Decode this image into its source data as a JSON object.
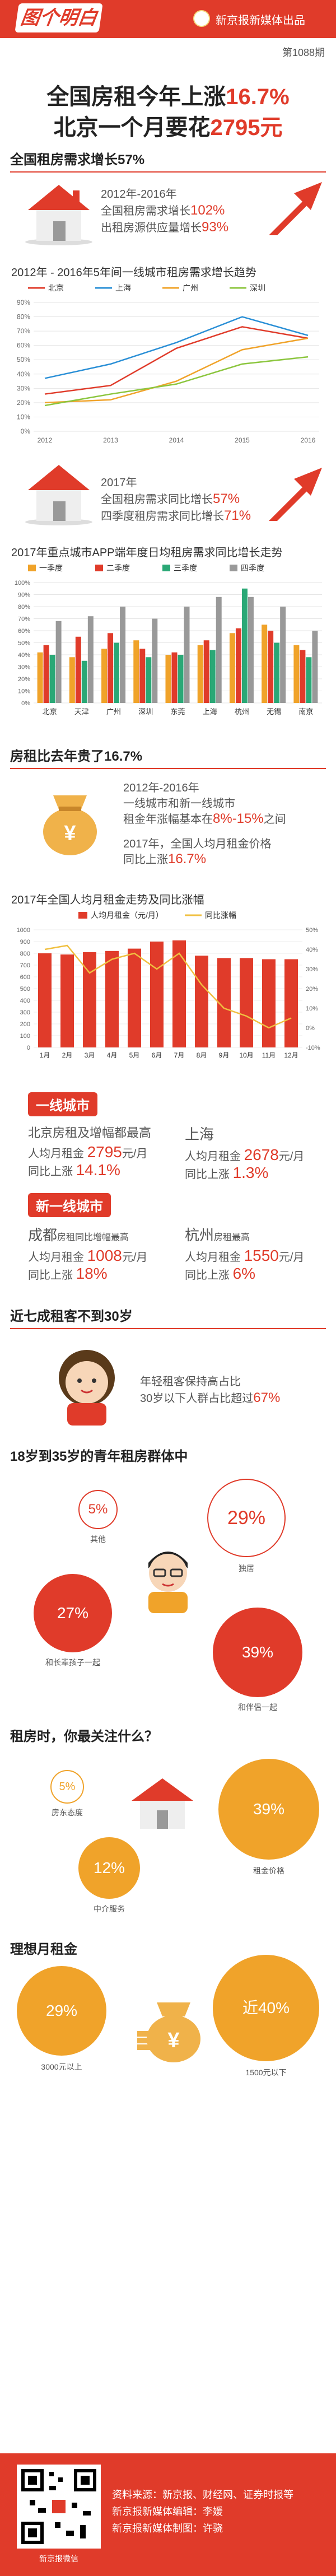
{
  "header": {
    "logo": "图个明白",
    "publisher": "新京报新媒体出品",
    "issue": "第1088期"
  },
  "hero": {
    "title1_pre": "全国房租今年上涨",
    "title1_hl": "16.7%",
    "title2_pre": "北京一个月要花",
    "title2_hl": "2795元"
  },
  "sec1": {
    "title": "全国租房需求增长57%",
    "years": "2012年-2016年",
    "line1_pre": "全国租房需求增长",
    "line1_hl": "102%",
    "line2_pre": "出租房源供应量增长",
    "line2_hl": "93%"
  },
  "line_chart": {
    "title": "2012年 - 2016年5年间一线城市租房需求增长趋势"
  },
  "sec2": {
    "year": "2017年",
    "line1_pre": "全国租房需求同比增长",
    "line1_hl": "57%",
    "line2_pre": "四季度租房需求同比增长",
    "line2_hl": "71%"
  },
  "bar_chart": {
    "title": "2017年重点城市APP端年度日均租房需求同比增长走势"
  },
  "sec3": {
    "title": "房租比去年贵了16.7%",
    "years": "2012年-2016年",
    "l1": "一线城市和新一线城市",
    "l2_pre": "租金年涨幅基本在",
    "l2_hl": "8%-15%",
    "l2_post": "之间",
    "l3": "2017年，全国人均月租金价格",
    "l4_pre": "同比上涨",
    "l4_hl": "16.7%"
  },
  "combo_chart": {
    "title": "2017年全国人均月租金走势及同比涨幅"
  },
  "tier1": {
    "tag": "一线城市",
    "bj_head": "北京房租及增幅都最高",
    "bj_l1": "人均月租金",
    "bj_v1": "2795",
    "bj_u1": "元/月",
    "bj_l2": "同比上涨",
    "bj_v2": "14.1%",
    "sh_head": "上海",
    "sh_l1": "人均月租金",
    "sh_v1": "2678",
    "sh_u1": "元/月",
    "sh_l2": "同比上涨",
    "sh_v2": "1.3%"
  },
  "tier2": {
    "tag": "新一线城市",
    "cd_head": "成都",
    "cd_sub": "房租同比增幅最高",
    "cd_l1": "人均月租金",
    "cd_v1": "1008",
    "cd_u1": "元/月",
    "cd_l2": "同比上涨",
    "cd_v2": "18%",
    "hz_head": "杭州",
    "hz_sub": "房租最高",
    "hz_l1": "人均月租金",
    "hz_v1": "1550",
    "hz_u1": "元/月",
    "hz_l2": "同比上涨",
    "hz_v2": "6%"
  },
  "sec4": {
    "title": "近七成租客不到30岁",
    "l1": "年轻租客保持高占比",
    "l2_pre": "30岁以下人群占比超过",
    "l2_hl": "67%"
  },
  "sec5": {
    "title": "18岁到35岁的青年租房群体中",
    "b1v": "5%",
    "b1l": "其他",
    "b2v": "29%",
    "b2l": "独居",
    "b3v": "27%",
    "b3l": "和长辈孩子一起",
    "b4v": "39%",
    "b4l": "和伴侣一起"
  },
  "sec6": {
    "title": "租房时，你最关注什么？",
    "b1v": "5%",
    "b1l": "房东态度",
    "b2v": "39%",
    "b2l": "租金价格",
    "b3v": "12%",
    "b3l": "中介服务"
  },
  "sec7": {
    "title": "理想月租金",
    "b1v": "29%",
    "b1l": "3000元以上",
    "b2v": "近40%",
    "b2l": "1500元以下"
  },
  "footer": {
    "qr_caption": "新京报微信",
    "source": "资料来源：新京报、财经网、证券时报等",
    "editor": "新京报新媒体编辑：李媛",
    "designer": "新京报新媒体制图：许骁"
  },
  "chart_data": [
    {
      "type": "line",
      "title": "2012年 - 2016年5年间一线城市租房需求增长趋势",
      "x": [
        "2012",
        "2013",
        "2014",
        "2015",
        "2016"
      ],
      "ylim": [
        0,
        90
      ],
      "yticks": [
        "0%",
        "10%",
        "20%",
        "30%",
        "40%",
        "50%",
        "60%",
        "70%",
        "80%",
        "90%"
      ],
      "series": [
        {
          "name": "北京",
          "color": "#e03b2a",
          "values": [
            26,
            32,
            58,
            73,
            65
          ]
        },
        {
          "name": "上海",
          "color": "#2a8fd6",
          "values": [
            37,
            47,
            62,
            80,
            67
          ]
        },
        {
          "name": "广州",
          "color": "#f0a32a",
          "values": [
            20,
            22,
            35,
            57,
            65
          ]
        },
        {
          "name": "深圳",
          "color": "#8cc63f",
          "values": [
            18,
            26,
            33,
            47,
            52
          ]
        }
      ]
    },
    {
      "type": "bar",
      "title": "2017年重点城市APP端年度日均租房需求同比增长走势",
      "categories": [
        "北京",
        "天津",
        "广州",
        "深圳",
        "东莞",
        "上海",
        "杭州",
        "无锡",
        "南京"
      ],
      "ylim": [
        0,
        100
      ],
      "yticks": [
        "0%",
        "10%",
        "20%",
        "30%",
        "40%",
        "50%",
        "60%",
        "70%",
        "80%",
        "90%",
        "100%"
      ],
      "series": [
        {
          "name": "一季度",
          "color": "#f0a32a",
          "values": [
            42,
            38,
            45,
            52,
            40,
            48,
            58,
            65,
            48
          ]
        },
        {
          "name": "二季度",
          "color": "#e03b2a",
          "values": [
            48,
            55,
            58,
            45,
            42,
            52,
            62,
            60,
            44
          ]
        },
        {
          "name": "三季度",
          "color": "#2aa876",
          "values": [
            40,
            35,
            50,
            38,
            40,
            44,
            95,
            50,
            38
          ]
        },
        {
          "name": "四季度",
          "color": "#999999",
          "values": [
            68,
            72,
            80,
            70,
            80,
            88,
            88,
            80,
            60
          ]
        }
      ]
    },
    {
      "type": "bar",
      "title": "2017年全国人均月租金走势及同比涨幅",
      "categories": [
        "1月",
        "2月",
        "3月",
        "4月",
        "5月",
        "6月",
        "7月",
        "8月",
        "9月",
        "10月",
        "11月",
        "12月"
      ],
      "y_left_lim": [
        0,
        1000
      ],
      "y_left_ticks": [
        "0",
        "100",
        "200",
        "300",
        "400",
        "500",
        "600",
        "700",
        "800",
        "900",
        "1000"
      ],
      "y_right_lim": [
        -10,
        50
      ],
      "y_right_ticks": [
        "-10%",
        "0%",
        "10%",
        "20%",
        "30%",
        "40%",
        "50%"
      ],
      "series": [
        {
          "name": "人均月租金（元/月）",
          "color": "#e03b2a",
          "kind": "bar",
          "values": [
            800,
            790,
            810,
            820,
            840,
            900,
            910,
            780,
            760,
            760,
            750,
            750
          ]
        },
        {
          "name": "同比涨幅",
          "color": "#f0c040",
          "kind": "line",
          "axis": "right",
          "values": [
            40,
            42,
            28,
            35,
            38,
            30,
            38,
            22,
            10,
            6,
            0,
            5
          ]
        }
      ]
    }
  ]
}
